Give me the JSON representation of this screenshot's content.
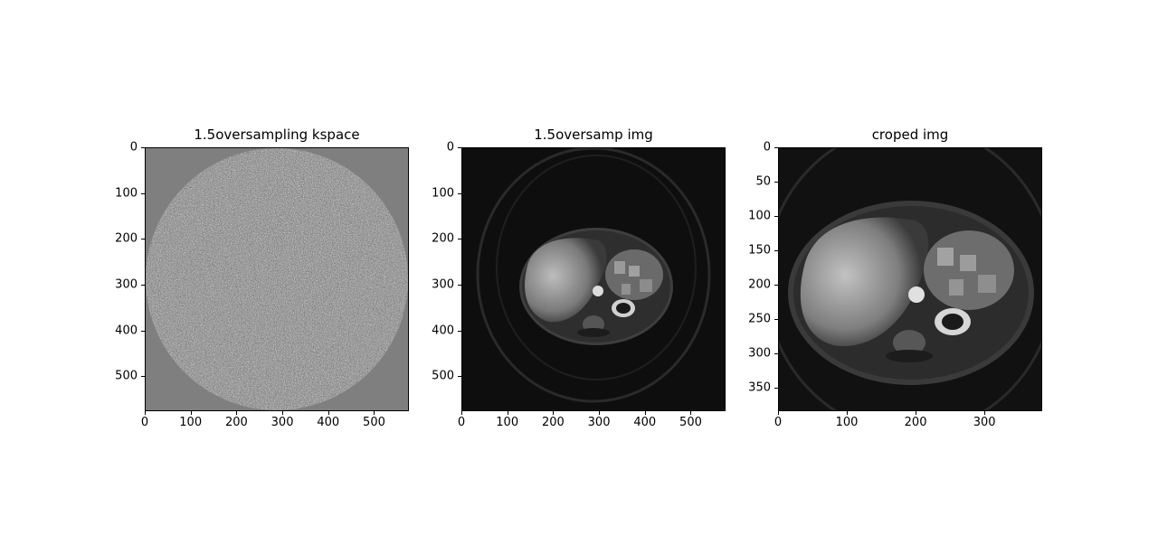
{
  "panels": [
    {
      "title": "1.5oversampling kspace",
      "x_ticks": [
        "0",
        "100",
        "200",
        "300",
        "400",
        "500"
      ],
      "y_ticks": [
        "0",
        "100",
        "200",
        "300",
        "400",
        "500"
      ],
      "extent": 576
    },
    {
      "title": "1.5oversamp img",
      "x_ticks": [
        "0",
        "100",
        "200",
        "300",
        "400",
        "500"
      ],
      "y_ticks": [
        "0",
        "100",
        "200",
        "300",
        "400",
        "500"
      ],
      "extent": 576
    },
    {
      "title": "croped img",
      "x_ticks": [
        "0",
        "100",
        "200",
        "300"
      ],
      "y_ticks": [
        "0",
        "50",
        "100",
        "150",
        "200",
        "250",
        "300",
        "350"
      ],
      "extent": 384
    }
  ]
}
